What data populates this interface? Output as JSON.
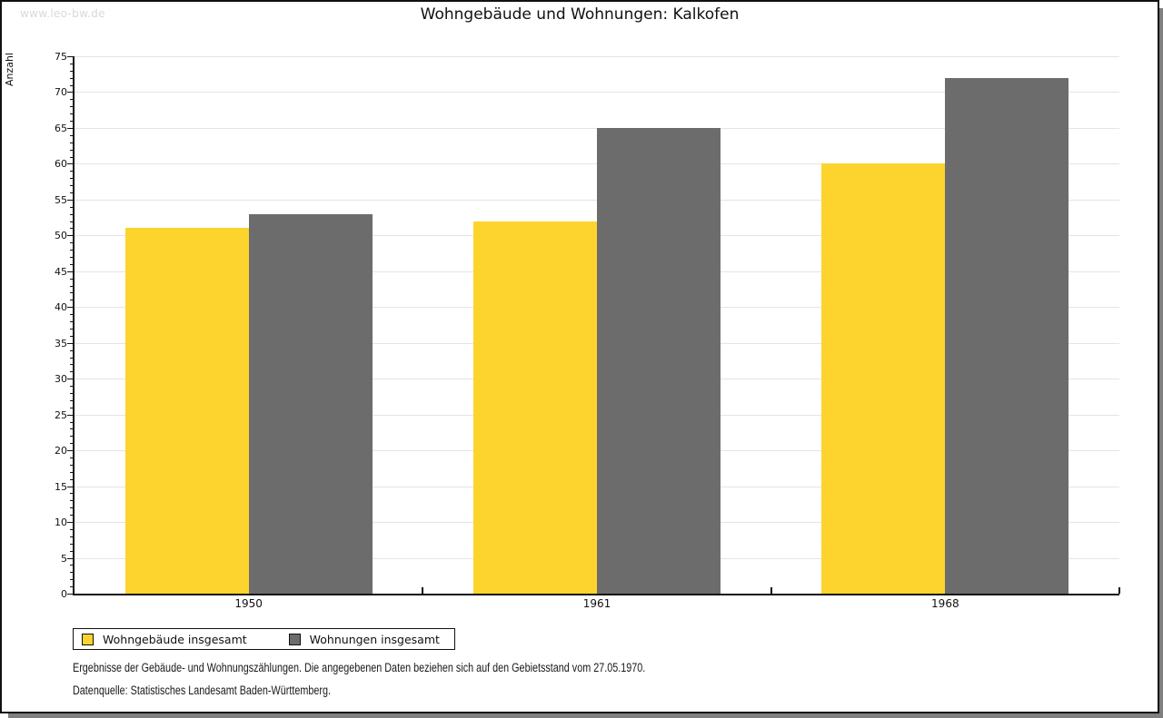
{
  "watermark": "www.leo-bw.de",
  "header": {
    "title": "Wohngebäude und Wohnungen: Kalkofen"
  },
  "chart_data": {
    "type": "bar",
    "title": "Wohngebäude und Wohnungen: Kalkofen",
    "xlabel": "",
    "ylabel": "Anzahl",
    "categories": [
      "1950",
      "1961",
      "1968"
    ],
    "series": [
      {
        "name": "Wohngebäude insgesamt",
        "color": "#fcd42d",
        "values": [
          51,
          52,
          60
        ]
      },
      {
        "name": "Wohnungen insgesamt",
        "color": "#6c6c6c",
        "values": [
          53,
          65,
          72
        ]
      }
    ],
    "ylim": [
      0,
      75
    ],
    "yticks": [
      0,
      5,
      10,
      15,
      20,
      25,
      30,
      35,
      40,
      45,
      50,
      55,
      60,
      65,
      70,
      75
    ],
    "yminor_step": 1,
    "grid": true,
    "legend_position": "bottom-left"
  },
  "legend": {
    "items": [
      {
        "label": "Wohngebäude insgesamt",
        "color": "#fcd42d"
      },
      {
        "label": "Wohnungen insgesamt",
        "color": "#6c6c6c"
      }
    ]
  },
  "footer": {
    "line1": "Ergebnisse der Gebäude- und Wohnungszählungen. Die angegebenen Daten beziehen sich auf den Gebietsstand vom 27.05.1970.",
    "line2": "Datenquelle: Statistisches Landesamt Baden-Württemberg."
  }
}
